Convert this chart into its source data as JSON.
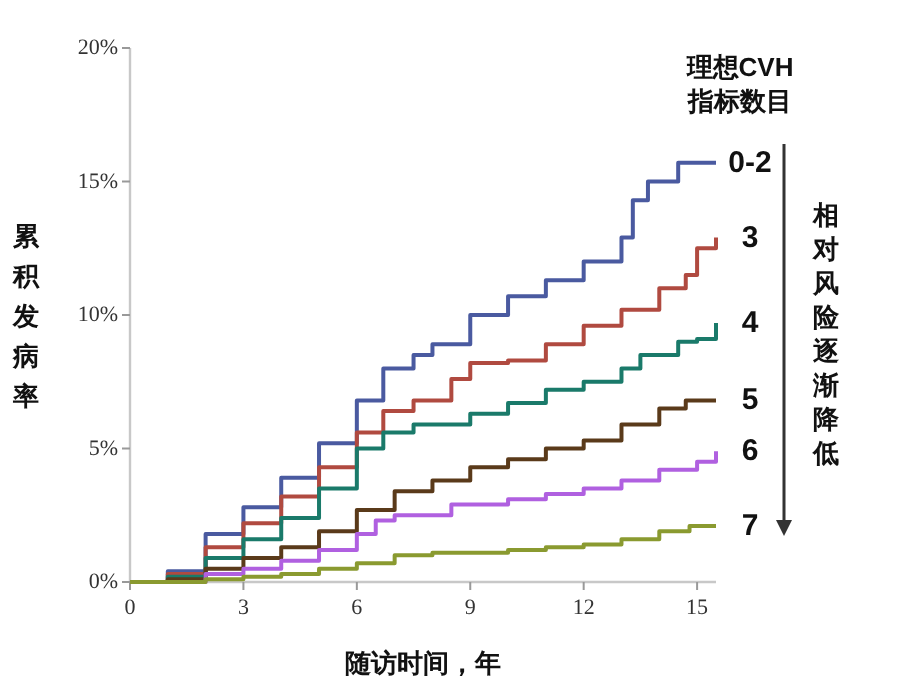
{
  "chart_data": {
    "type": "step",
    "xlabel": "随访时间，年",
    "ylabel": "累积发病率",
    "legend_title": "理想CVH\n指标数目",
    "annotations": [
      "相对风险逐渐降低"
    ],
    "xlim": [
      0,
      15.5
    ],
    "xticks": [
      0,
      3,
      6,
      9,
      12,
      15
    ],
    "ylim": [
      0,
      20
    ],
    "yticks": [
      {
        "value": 0,
        "label": "0%"
      },
      {
        "value": 5,
        "label": "5%"
      },
      {
        "value": 10,
        "label": "10%"
      },
      {
        "value": 15,
        "label": "15%"
      },
      {
        "value": 20,
        "label": "20%"
      }
    ],
    "grid": false,
    "series": [
      {
        "name": "0-2",
        "color": "#4a5aa0",
        "x": [
          0,
          1,
          2,
          3,
          4,
          5,
          6,
          6.7,
          7.5,
          8,
          9,
          10,
          11,
          12,
          13,
          13.3,
          13.7,
          14.5,
          15.5
        ],
        "values": [
          0,
          0.4,
          1.8,
          2.8,
          3.9,
          5.2,
          6.8,
          8.0,
          8.5,
          8.9,
          10.0,
          10.7,
          11.3,
          12.0,
          12.9,
          14.3,
          15.0,
          15.7,
          15.7
        ]
      },
      {
        "name": "3",
        "color": "#b04a40",
        "x": [
          0,
          1,
          2,
          3,
          4,
          5,
          6,
          6.7,
          7.5,
          8.5,
          9,
          10,
          11,
          12,
          13,
          14,
          14.7,
          15,
          15.5
        ],
        "values": [
          0,
          0.3,
          1.3,
          2.2,
          3.2,
          4.3,
          5.6,
          6.4,
          6.8,
          7.6,
          8.2,
          8.3,
          8.9,
          9.6,
          10.2,
          11.0,
          11.5,
          12.5,
          12.9
        ]
      },
      {
        "name": "4",
        "color": "#1a7a6a",
        "x": [
          0,
          1,
          2,
          3,
          4,
          5,
          6,
          6.7,
          7.5,
          9,
          10,
          11,
          12,
          13,
          13.5,
          14.5,
          15,
          15.5
        ],
        "values": [
          0,
          0.2,
          0.9,
          1.6,
          2.4,
          3.5,
          5.0,
          5.6,
          5.9,
          6.3,
          6.7,
          7.2,
          7.5,
          8.0,
          8.5,
          9.0,
          9.1,
          9.7
        ]
      },
      {
        "name": "5",
        "color": "#5a3a1a",
        "x": [
          0,
          1,
          2,
          3,
          4,
          5,
          6,
          7,
          8,
          9,
          10,
          11,
          12,
          13,
          14,
          14.7,
          15.5
        ],
        "values": [
          0,
          0.1,
          0.5,
          0.9,
          1.3,
          1.9,
          2.7,
          3.4,
          3.8,
          4.3,
          4.6,
          5.0,
          5.3,
          5.9,
          6.5,
          6.8,
          6.8
        ]
      },
      {
        "name": "6",
        "color": "#b060e0",
        "x": [
          0,
          2,
          3,
          4,
          5,
          6,
          6.5,
          7,
          8.5,
          10,
          11,
          12,
          13,
          14,
          15,
          15.5
        ],
        "values": [
          0,
          0.3,
          0.5,
          0.8,
          1.2,
          1.8,
          2.3,
          2.5,
          2.9,
          3.1,
          3.3,
          3.5,
          3.8,
          4.2,
          4.5,
          4.9
        ]
      },
      {
        "name": "7",
        "color": "#8a9a30",
        "x": [
          0,
          2,
          3,
          4,
          5,
          6,
          7,
          8,
          10,
          11,
          12,
          13,
          14,
          14.8,
          15.5
        ],
        "values": [
          0,
          0.1,
          0.2,
          0.3,
          0.5,
          0.7,
          1.0,
          1.1,
          1.2,
          1.3,
          1.4,
          1.6,
          1.9,
          2.1,
          2.1
        ]
      }
    ]
  }
}
